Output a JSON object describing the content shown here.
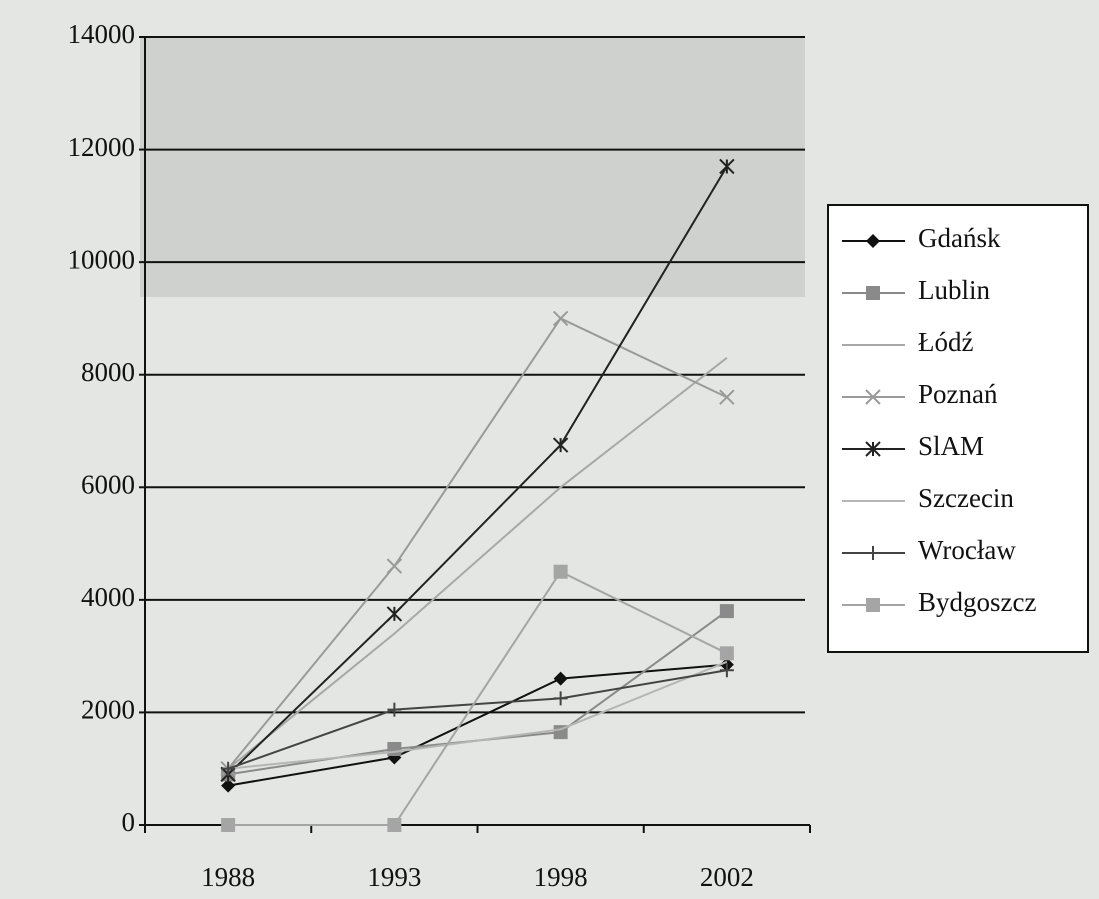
{
  "chart_data": {
    "type": "line",
    "categories": [
      "1988",
      "1993",
      "1998",
      "2002"
    ],
    "series": [
      {
        "name": "Gdańsk",
        "color": "#111111",
        "marker": "diamond",
        "values": [
          700,
          1200,
          2600,
          2850
        ]
      },
      {
        "name": "Lublin",
        "color": "#8a8a8a",
        "marker": "square",
        "values": [
          900,
          1350,
          1650,
          3800
        ]
      },
      {
        "name": "Łódź",
        "color": "#a8a8a8",
        "marker": "none",
        "values": [
          1000,
          3400,
          6000,
          8300
        ]
      },
      {
        "name": "Poznań",
        "color": "#9a9a9a",
        "marker": "x",
        "values": [
          1000,
          4600,
          9000,
          7600
        ]
      },
      {
        "name": "SlAM",
        "color": "#222222",
        "marker": "asterisk",
        "values": [
          900,
          3750,
          6750,
          11700
        ]
      },
      {
        "name": "Szczecin",
        "color": "#b5b5b5",
        "marker": "none",
        "values": [
          1000,
          1300,
          1700,
          2900
        ]
      },
      {
        "name": "Wrocław",
        "color": "#444444",
        "marker": "plus",
        "values": [
          1000,
          2050,
          2250,
          2750
        ]
      },
      {
        "name": "Bydgoszcz",
        "color": "#a5a5a5",
        "marker": "square",
        "values": [
          0,
          0,
          4500,
          3050
        ]
      }
    ],
    "ylim": [
      0,
      14000
    ],
    "yticks": [
      0,
      2000,
      4000,
      6000,
      8000,
      10000,
      12000,
      14000
    ],
    "grid": true,
    "legend": "right"
  }
}
